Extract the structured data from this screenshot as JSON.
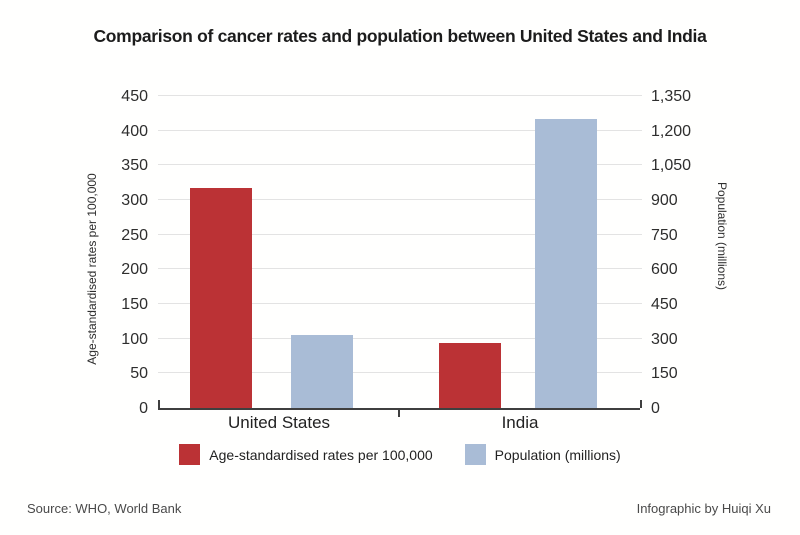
{
  "page": {
    "title": "Comparison of cancer rates and population between United States and India",
    "source": "Source: WHO, World Bank",
    "credit": "Infographic by Huiqi Xu"
  },
  "chart_data": {
    "type": "bar",
    "title": "Comparison of cancer rates and population between United States and India",
    "categories": [
      "United States",
      "India"
    ],
    "series": [
      {
        "name": "Age-standardised rates per 100,000",
        "axis": "left",
        "color": "#bb3235",
        "values": [
          318,
          94
        ]
      },
      {
        "name": "Population (millions)",
        "axis": "right",
        "color": "#a9bcd6",
        "values": [
          316,
          1252
        ]
      }
    ],
    "left_axis": {
      "label": "Age-standardised rates per 100,000",
      "min": 0,
      "max": 450,
      "step": 50,
      "tick_labels": [
        "450",
        "400",
        "350",
        "300",
        "250",
        "200",
        "150",
        "100",
        "50",
        "0"
      ]
    },
    "right_axis": {
      "label": "Population (millions)",
      "min": 0,
      "max": 1350,
      "step": 150,
      "tick_labels": [
        "1,350",
        "1,200",
        "1,050",
        "900",
        "750",
        "600",
        "450",
        "300",
        "150",
        "0"
      ]
    },
    "grid": true,
    "legend_position": "bottom",
    "gridline_color": "#e3e3e3",
    "axis_color": "#3f3f3f",
    "source": "Source: WHO, World Bank",
    "credit": "Infographic by Huiqi Xu"
  }
}
